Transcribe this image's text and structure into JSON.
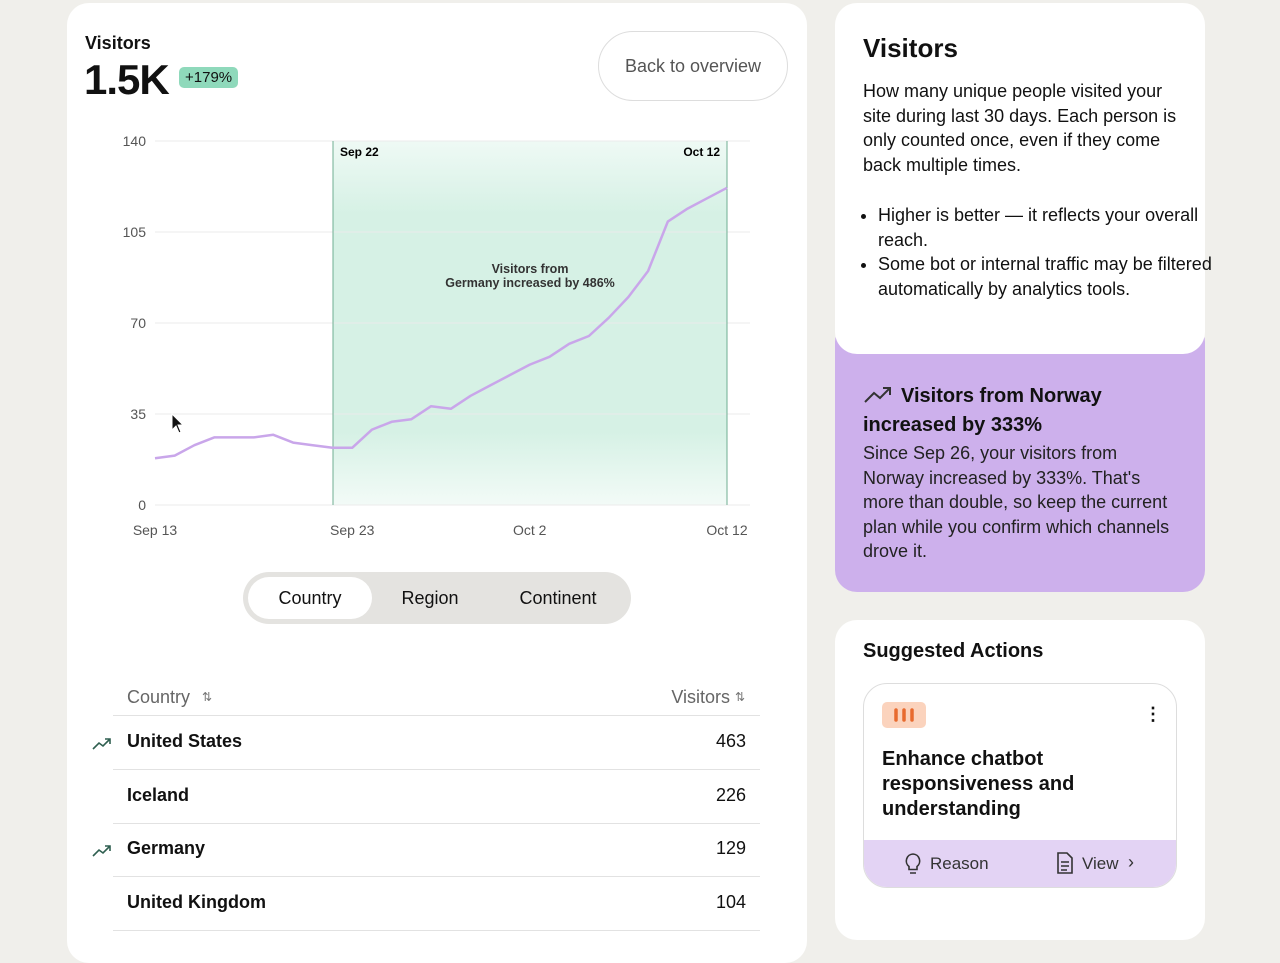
{
  "header": {
    "title": "Visitors",
    "value": "1.5K",
    "change": "+179%",
    "button": "Back to overview"
  },
  "chart_data": {
    "type": "line",
    "categories": [
      "Sep 13",
      null,
      null,
      null,
      null,
      null,
      null,
      null,
      null,
      null,
      "Sep 23",
      null,
      null,
      null,
      null,
      null,
      null,
      null,
      null,
      "Oct 2",
      null,
      null,
      null,
      null,
      null,
      null,
      null,
      null,
      null,
      "Oct 12"
    ],
    "values": [
      18,
      19,
      23,
      26,
      26,
      26,
      27,
      24,
      23,
      22,
      22,
      29,
      32,
      33,
      38,
      37,
      42,
      46,
      50,
      54,
      57,
      62,
      65,
      72,
      80,
      90,
      109,
      114,
      118,
      122
    ],
    "color": "#c9a6ea",
    "ylim": [
      0,
      140
    ],
    "yticks": [
      0,
      35,
      70,
      105,
      140
    ],
    "grid": true,
    "highlight_labels": [
      "Sep 22",
      "Oct 12"
    ],
    "annotation": [
      "Visitors from",
      "Germany increased by 486%"
    ]
  },
  "tabs": [
    "Country",
    "Region",
    "Continent"
  ],
  "table": {
    "columns": [
      "Country",
      "Visitors"
    ],
    "rows": [
      [
        "United States",
        "463"
      ],
      [
        "Iceland",
        "226"
      ],
      [
        "Germany",
        "129"
      ],
      [
        "United Kingdom",
        "104"
      ]
    ],
    "trend": [
      true,
      false,
      true,
      false
    ]
  },
  "info": {
    "title": "Visitors",
    "description": "How many unique people visited your site during last 30 days. Each person is only counted once, even if they come back multiple times.",
    "bullets": [
      "Higher is better — it reflects your overall reach.",
      "Some bot or internal traffic may be filtered automatically by analytics tools."
    ]
  },
  "insight": {
    "title": "Visitors from Norway increased by 333%",
    "body": "Since Sep 26, your visitors from Norway increased by 333%. That's more than double, so keep the current plan while you confirm which channels drove it."
  },
  "actions": {
    "title": "Suggested Actions",
    "card": {
      "title": "Enhance chatbot responsiveness and understanding",
      "buttons": [
        "Reason",
        "View"
      ]
    }
  }
}
